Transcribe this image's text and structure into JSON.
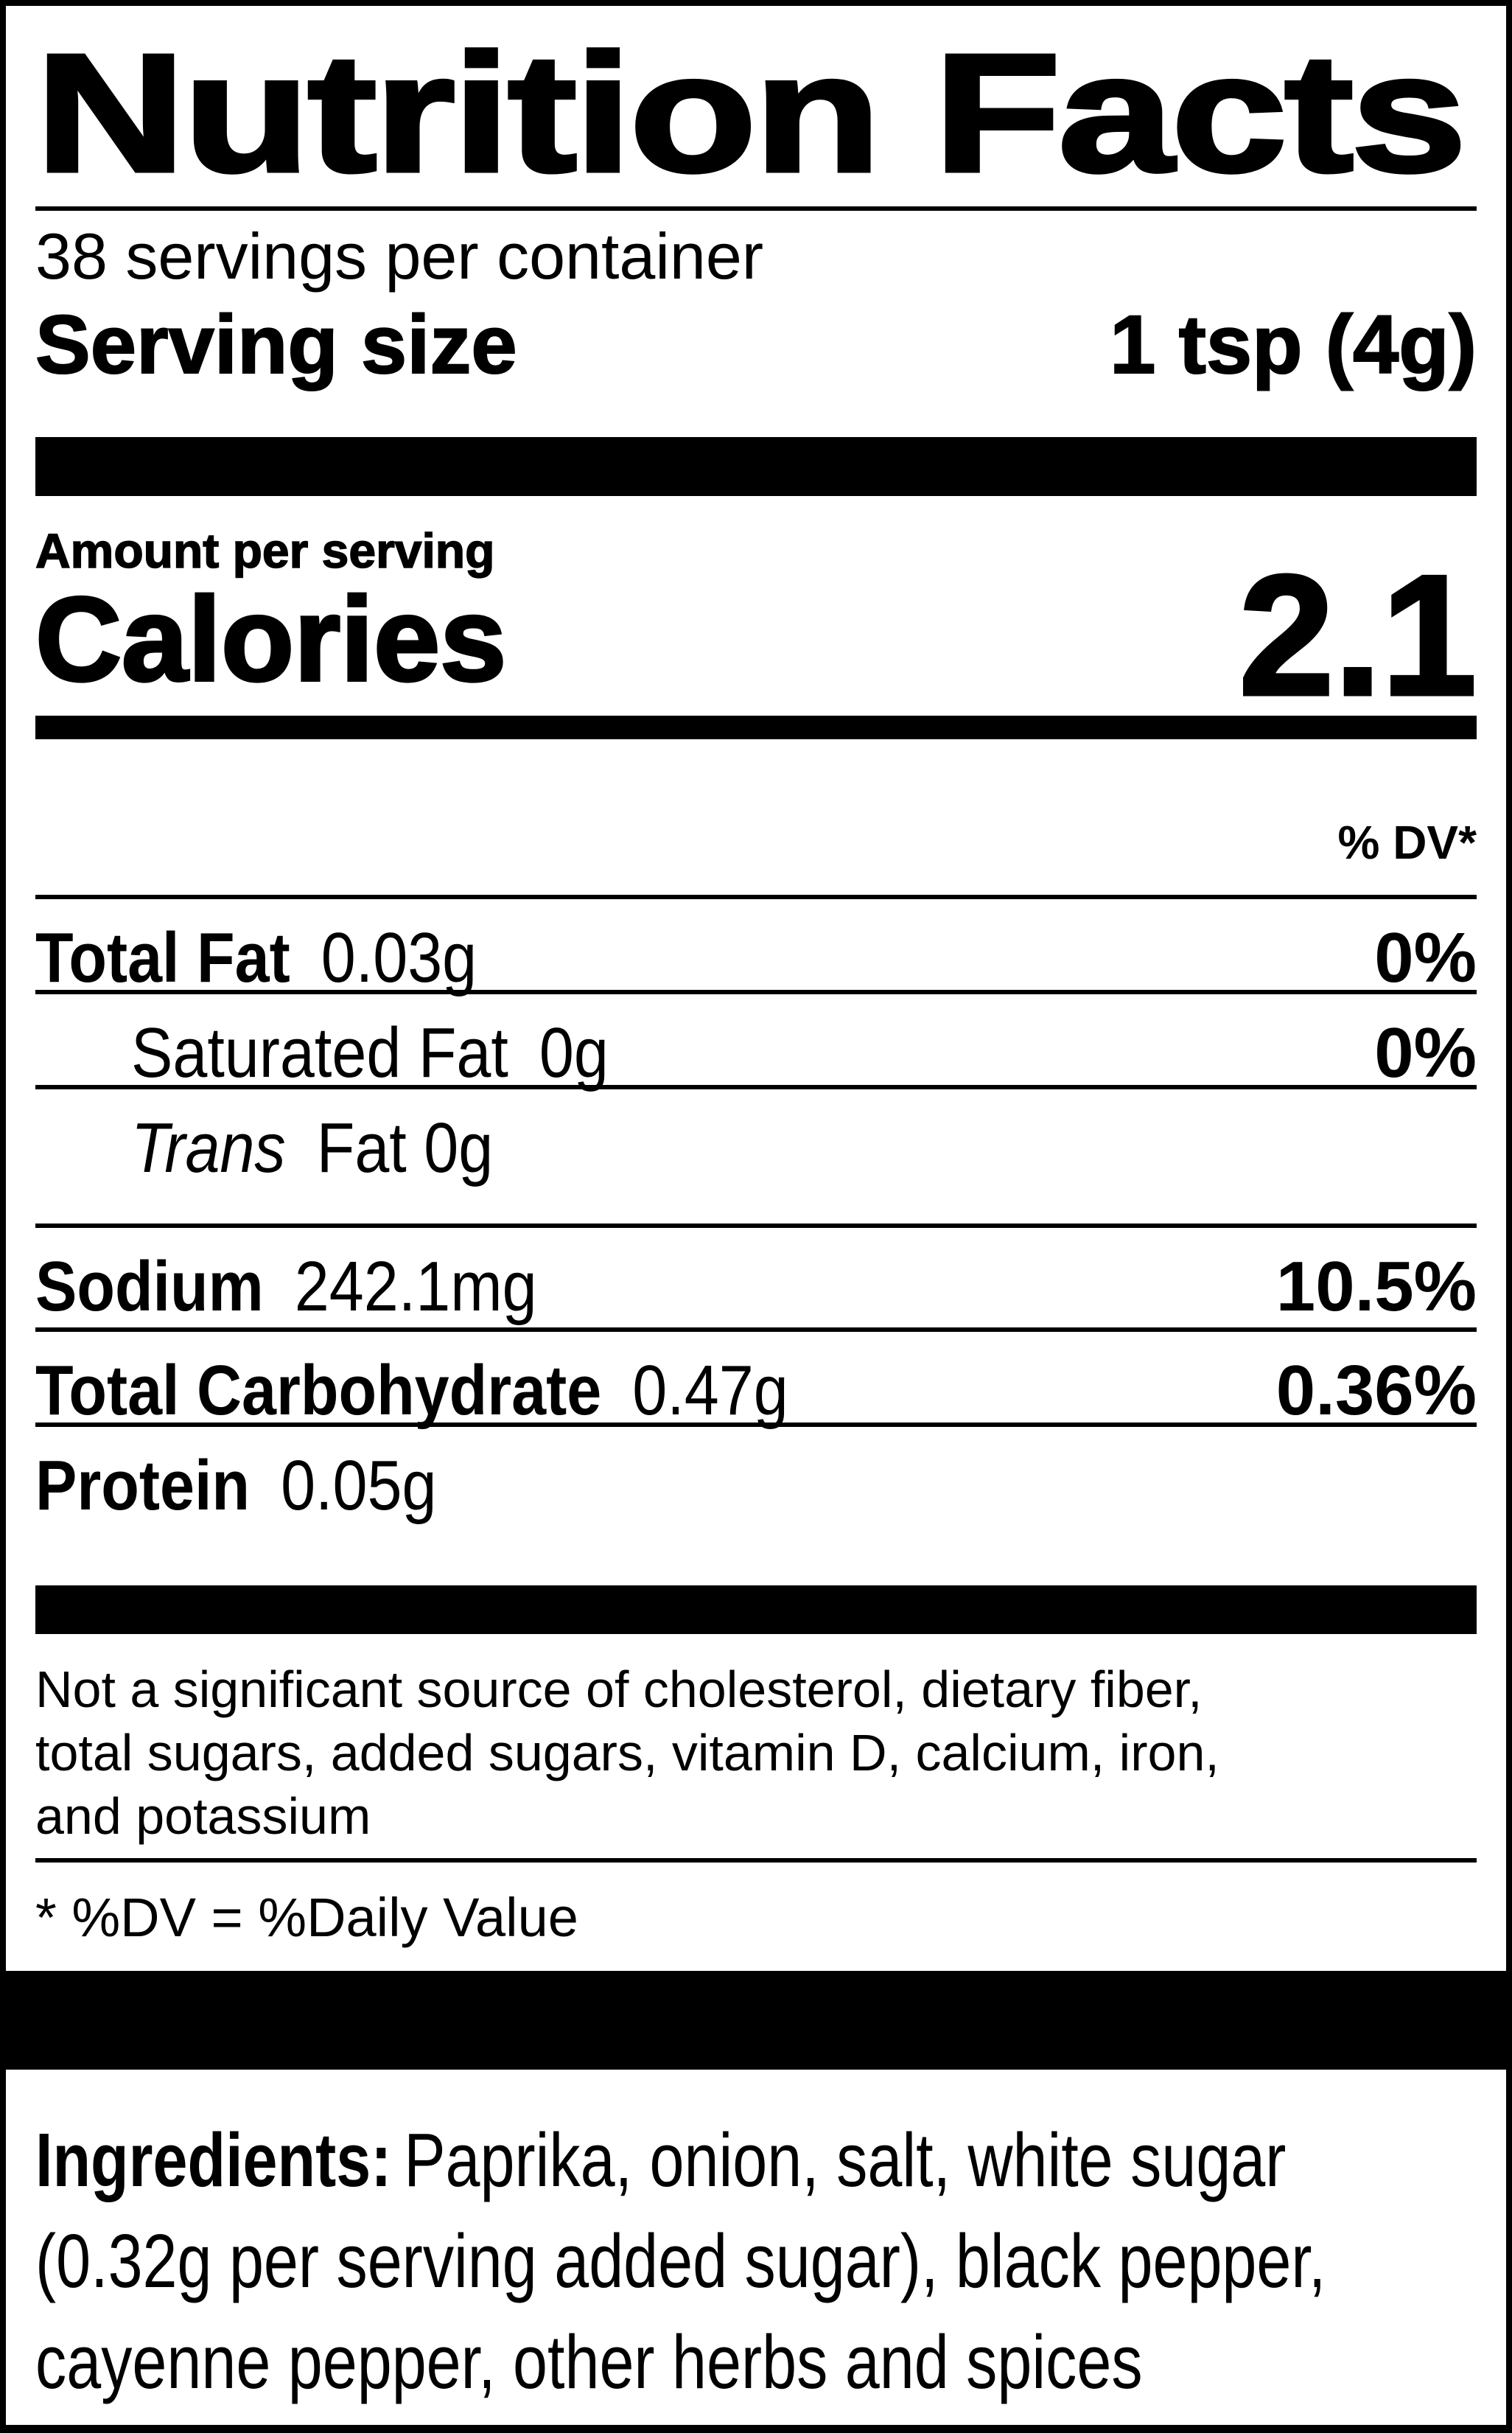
{
  "colors": {
    "ink": "#000000",
    "paper": "#ffffff"
  },
  "label": {
    "title": "Nutrition Facts",
    "servings_per_container": "38 servings per container",
    "serving_size": {
      "label": "Serving size",
      "value": "1 tsp (4g)"
    },
    "amount_per_serving": "Amount per serving",
    "calories": {
      "label": "Calories",
      "value": "2.1"
    },
    "dv_header": "% DV*",
    "nutrients": [
      {
        "name": "Total Fat",
        "amount": "0.03g",
        "dv": "0%"
      },
      {
        "name": "Saturated Fat",
        "amount": "0g",
        "dv": "0%"
      },
      {
        "name": "Trans",
        "amount": "Fat 0g",
        "dv": ""
      },
      {
        "name": "Sodium",
        "amount": "242.1mg",
        "dv": "10.5%"
      },
      {
        "name": "Total Carbohydrate",
        "amount": "0.47g",
        "dv": "0.36%"
      },
      {
        "name": "Protein",
        "amount": "0.05g",
        "dv": ""
      }
    ],
    "disclaimer_lines": [
      "Not a significant source of cholesterol, dietary fiber,",
      "total sugars, added sugars, vitamin D, calcium, iron,",
      "and potassium"
    ],
    "footnote": "* %DV = %Daily Value",
    "ingredients": {
      "label": "Ingredients:",
      "lines": [
        "Paprika, onion, salt, white sugar",
        "(0.32g per serving added sugar), black pepper,",
        "cayenne pepper, other herbs and spices"
      ]
    }
  }
}
